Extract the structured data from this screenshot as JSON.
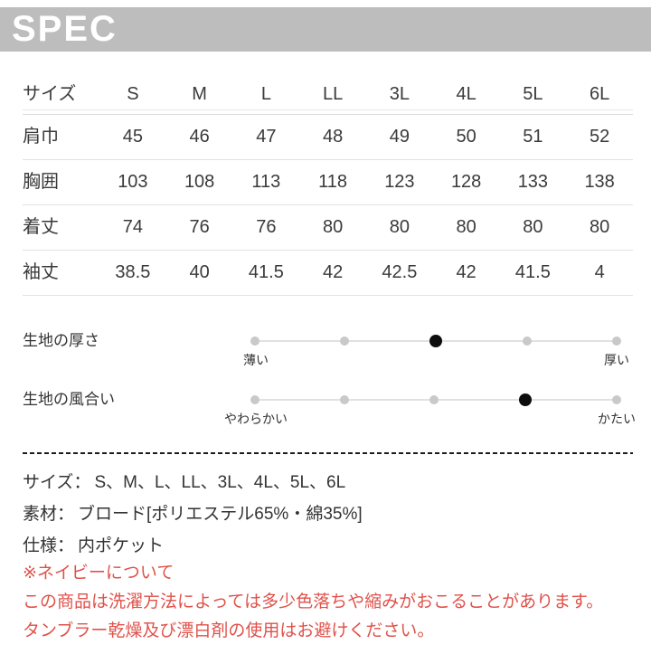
{
  "header": {
    "title": "SPEC"
  },
  "size_table": {
    "corner_label": "サイズ",
    "columns": [
      "S",
      "M",
      "L",
      "LL",
      "3L",
      "4L",
      "5L",
      "6L"
    ],
    "rows": [
      {
        "label": "肩巾",
        "values": [
          "45",
          "46",
          "47",
          "48",
          "49",
          "50",
          "51",
          "52"
        ]
      },
      {
        "label": "胸囲",
        "values": [
          "103",
          "108",
          "113",
          "118",
          "123",
          "128",
          "133",
          "138"
        ]
      },
      {
        "label": "着丈",
        "values": [
          "74",
          "76",
          "76",
          "80",
          "80",
          "80",
          "80",
          "80"
        ]
      },
      {
        "label": "袖丈",
        "values": [
          "38.5",
          "40",
          "41.5",
          "42",
          "42.5",
          "42",
          "41.5",
          "4"
        ]
      }
    ]
  },
  "scales": [
    {
      "label": "生地の厚さ",
      "left_label": "薄い",
      "right_label": "厚い",
      "steps": 5,
      "selected": 3
    },
    {
      "label": "生地の風合い",
      "left_label": "やわらかい",
      "right_label": "かたい",
      "steps": 5,
      "selected": 4
    }
  ],
  "details": [
    {
      "label": "サイズ：",
      "text": "S、M、L、LL、3L、4L、5L、6L"
    },
    {
      "label": "素材：",
      "text": "ブロード[ポリエステル65%・綿35%]"
    },
    {
      "label": "仕様：",
      "text": "内ポケット"
    }
  ],
  "notes": {
    "title": "※ネイビーについて",
    "lines": [
      "この商品は洗濯方法によっては多少色落ちや縮みがおこることがあります。",
      "タンブラー乾燥及び漂白剤の使用はお避けください。"
    ]
  },
  "colors": {
    "header_bg": "#bdbdbd",
    "header_text": "#ffffff",
    "body_text": "#3a3a3a",
    "row_line": "#e2e2e2",
    "dot_inactive": "#c9c9c9",
    "dot_active": "#0d0d0d",
    "note_red": "#e0514a"
  }
}
